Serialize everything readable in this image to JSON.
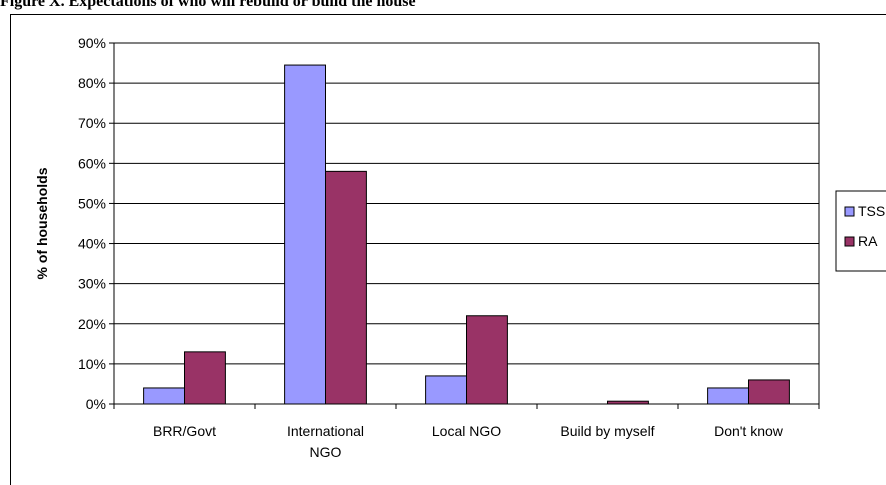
{
  "caption": "Figure X. Expectations of who will rebuild or build the house",
  "chart_data": {
    "type": "bar",
    "categories": [
      "BRR/Govt",
      "International NGO",
      "Local NGO",
      "Build by myself",
      "Don't know"
    ],
    "category_lines": [
      [
        "BRR/Govt"
      ],
      [
        "International",
        "NGO"
      ],
      [
        "Local NGO"
      ],
      [
        "Build by myself"
      ],
      [
        "Don't know"
      ]
    ],
    "series": [
      {
        "name": "TSS",
        "color": "#9999ff",
        "values": [
          4,
          84.5,
          7,
          0,
          4
        ]
      },
      {
        "name": "RA",
        "color": "#993366",
        "values": [
          13,
          58,
          22,
          0.7,
          6
        ]
      }
    ],
    "ylabel": "% of households",
    "ylim": [
      0,
      90
    ],
    "ytick_step": 10,
    "ytick_labels": [
      "0%",
      "10%",
      "20%",
      "30%",
      "40%",
      "50%",
      "60%",
      "70%",
      "80%",
      "90%"
    ],
    "grid": true,
    "legend": "right"
  }
}
